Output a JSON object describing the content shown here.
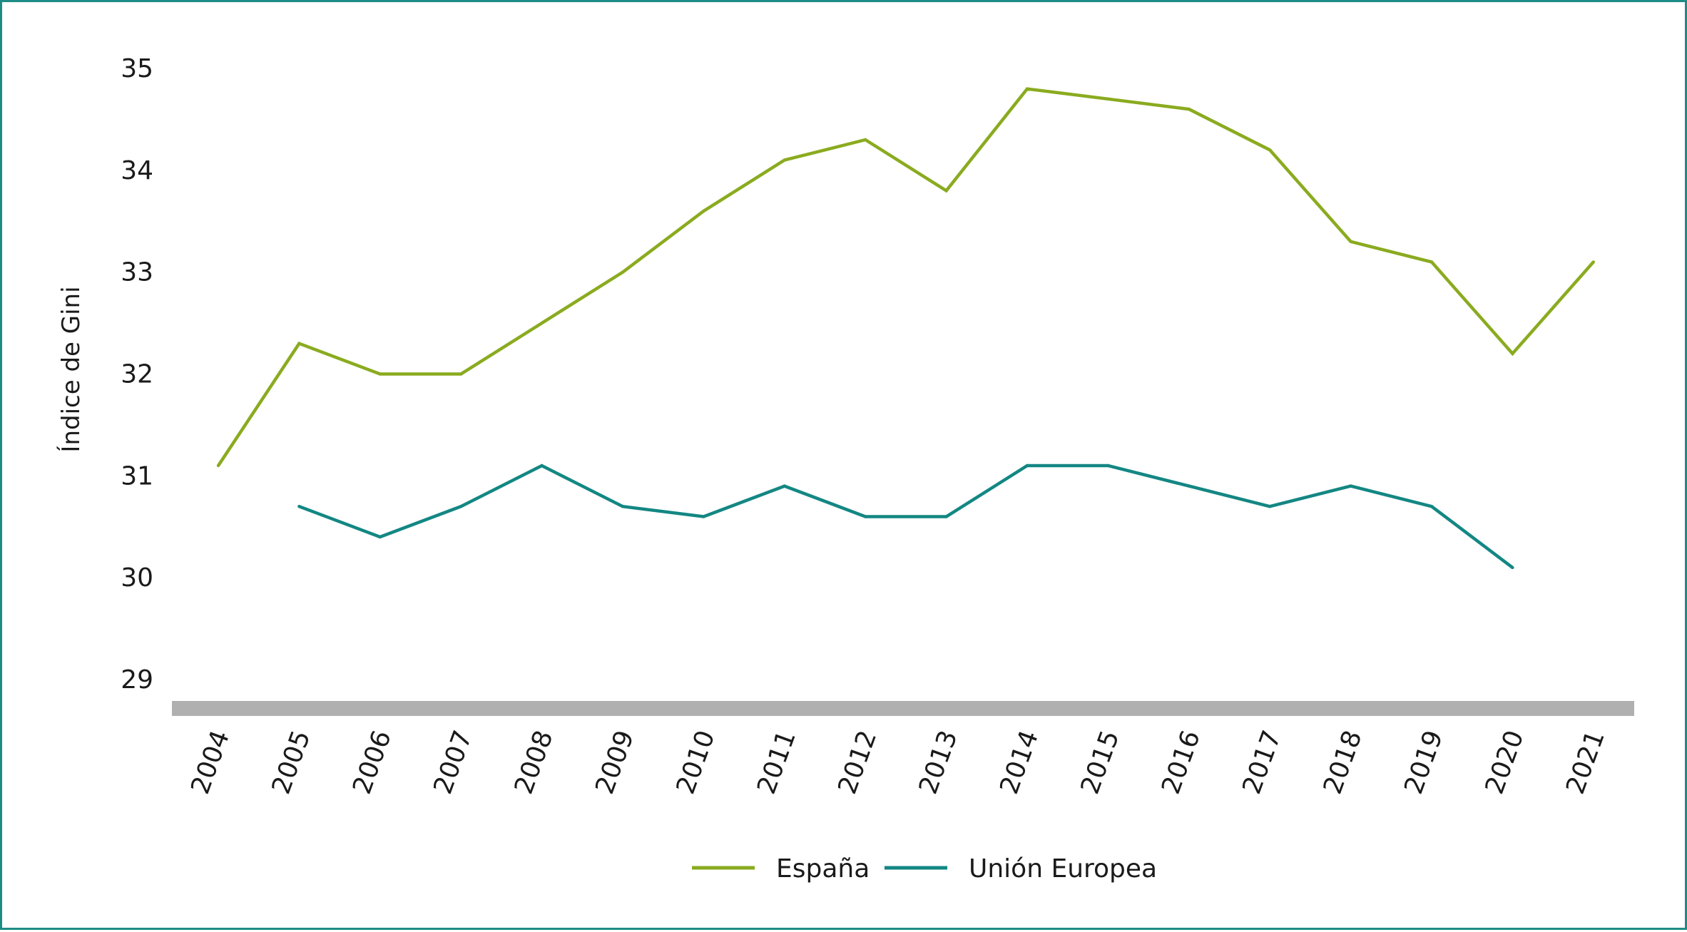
{
  "chart_data": {
    "type": "line",
    "title": "",
    "xlabel": "",
    "ylabel": "Índice de Gini",
    "ylim": [
      29,
      35
    ],
    "yticks": [
      29,
      30,
      31,
      32,
      33,
      34,
      35
    ],
    "grid": false,
    "legend_position": "bottom-center",
    "categories": [
      "2004",
      "2005",
      "2006",
      "2007",
      "2008",
      "2009",
      "2010",
      "2011",
      "2012",
      "2013",
      "2014",
      "2015",
      "2016",
      "2017",
      "2018",
      "2019",
      "2020",
      "2021"
    ],
    "series": [
      {
        "name": "España",
        "color": "#8aab1f",
        "values": [
          31.1,
          32.3,
          32.0,
          32.0,
          32.5,
          33.0,
          33.6,
          34.1,
          34.3,
          33.8,
          34.8,
          34.7,
          34.6,
          34.2,
          33.3,
          33.1,
          32.2,
          33.1
        ]
      },
      {
        "name": "Unión Europea",
        "color": "#138783",
        "values": [
          null,
          30.7,
          30.4,
          30.7,
          31.1,
          30.7,
          30.6,
          30.9,
          30.6,
          30.6,
          31.1,
          31.1,
          30.9,
          30.7,
          30.9,
          30.7,
          30.1,
          null
        ]
      }
    ],
    "axis_bar_color": "#b1b0b0",
    "frame_color": "#1e8c86"
  }
}
